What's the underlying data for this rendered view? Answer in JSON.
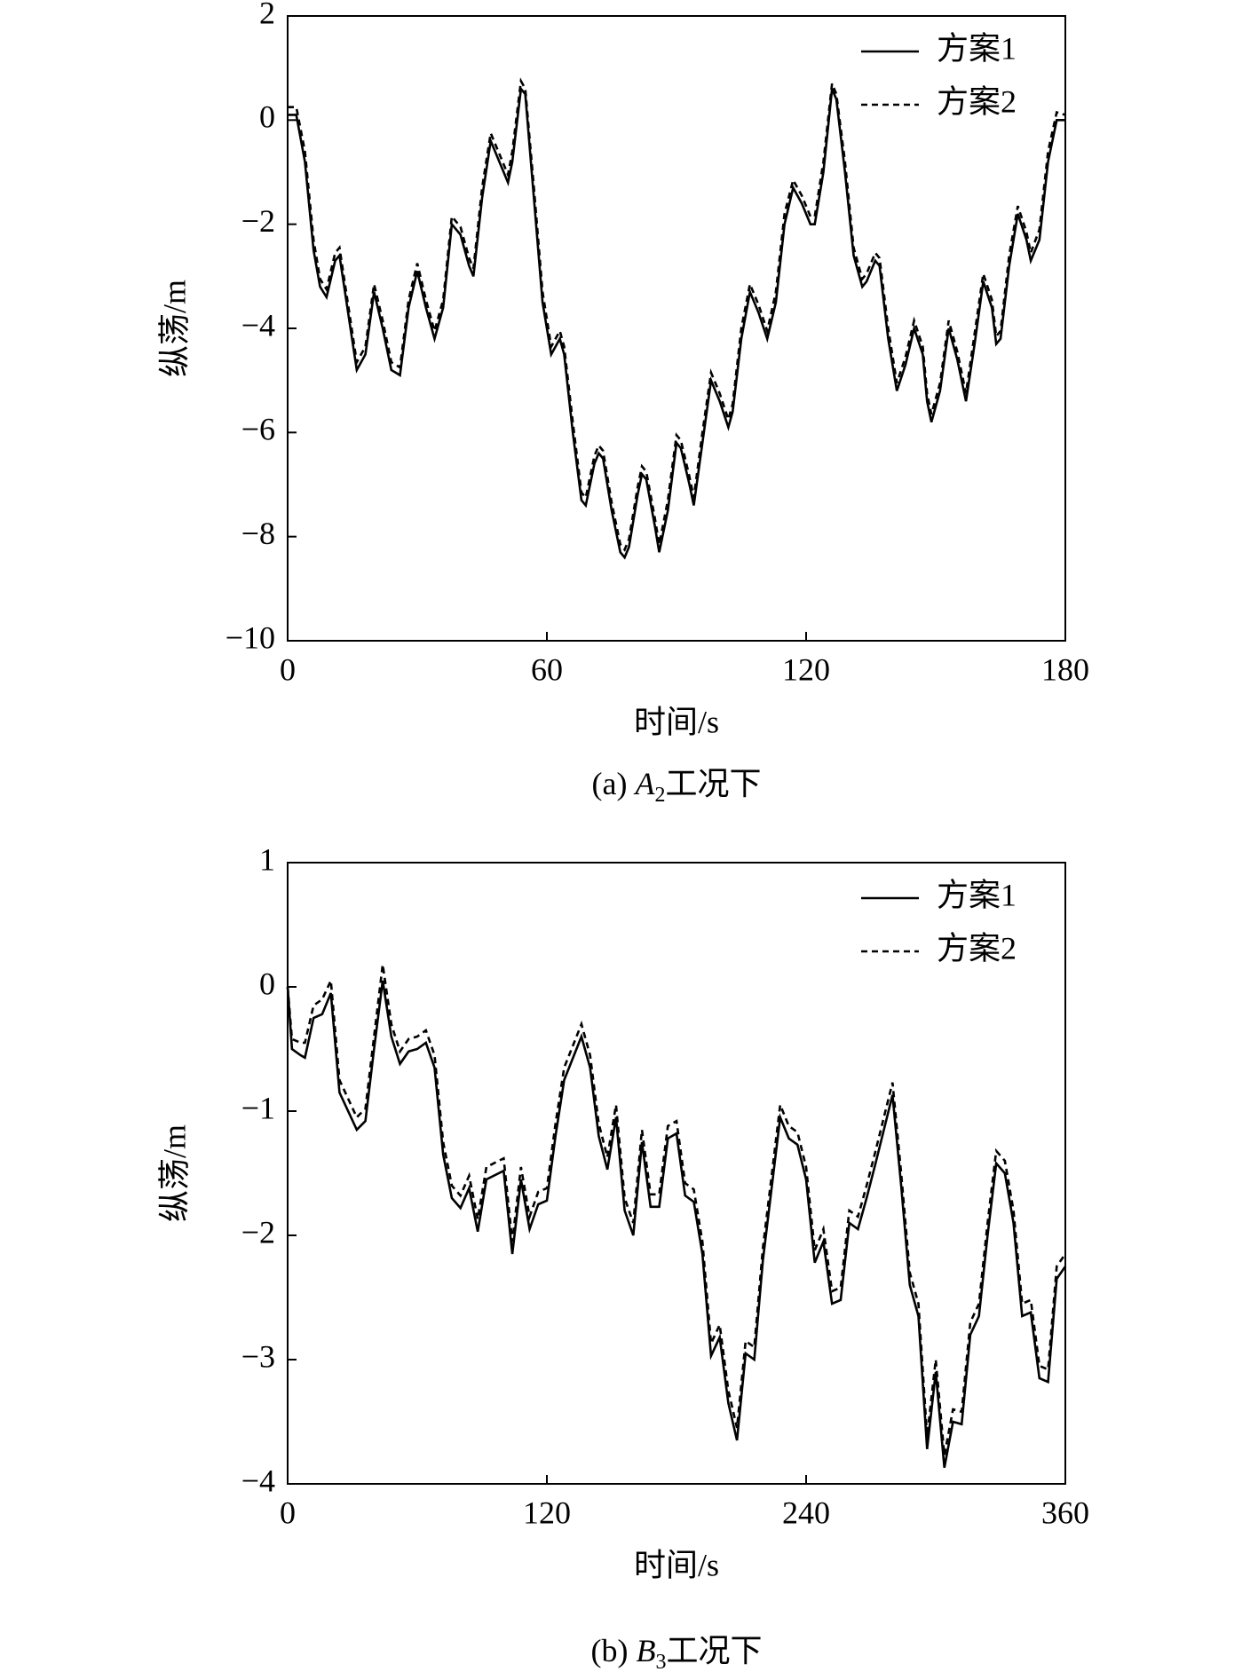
{
  "chart_data": [
    {
      "type": "line",
      "caption": {
        "prefix": "(a) ",
        "var": "A",
        "sub": "2",
        "rest": "工况下"
      },
      "xlabel": "时间/s",
      "ylabel": "纵荡/m",
      "xlim": [
        0,
        180
      ],
      "ylim": [
        -10,
        2
      ],
      "xticks": [
        0,
        60,
        120,
        180
      ],
      "yticks": [
        {
          "value": -10,
          "label": "−10"
        },
        {
          "value": -8,
          "label": "−8"
        },
        {
          "value": -6,
          "label": "−6"
        },
        {
          "value": -4,
          "label": "−4"
        },
        {
          "value": -2,
          "label": "−2"
        },
        0,
        2
      ],
      "legend": "upper right",
      "x": [
        0,
        2,
        4,
        6,
        7.5,
        9,
        11,
        12,
        14,
        16,
        18,
        20,
        22,
        24,
        26,
        28,
        30,
        32,
        34,
        36,
        38,
        40,
        42,
        43,
        45,
        47,
        49,
        51,
        52,
        54,
        55,
        57,
        59,
        61,
        63,
        64,
        66,
        68,
        69,
        71,
        72,
        73,
        75,
        77,
        78,
        79,
        81,
        82,
        83,
        85,
        86,
        88,
        90,
        91,
        93,
        94,
        96,
        98,
        100,
        102,
        103,
        105,
        107,
        109,
        111,
        113,
        115,
        117,
        119,
        121,
        122,
        124,
        126,
        127,
        129,
        131,
        133,
        134,
        136,
        137,
        139,
        141,
        143,
        145,
        147,
        148,
        149,
        151,
        153,
        155,
        157,
        159,
        161,
        163,
        164,
        165,
        167,
        169,
        171,
        172,
        174,
        176,
        178,
        180
      ],
      "series": [
        {
          "name": "方案1",
          "color": "#000000",
          "style": "solid",
          "values": [
            0.1,
            0.1,
            -0.8,
            -2.5,
            -3.2,
            -3.4,
            -2.7,
            -2.6,
            -3.7,
            -4.8,
            -4.5,
            -3.3,
            -4.0,
            -4.8,
            -4.9,
            -3.6,
            -2.9,
            -3.6,
            -4.2,
            -3.6,
            -2.0,
            -2.2,
            -2.8,
            -3.0,
            -1.5,
            -0.4,
            -0.8,
            -1.2,
            -0.8,
            0.6,
            0.5,
            -1.5,
            -3.5,
            -4.5,
            -4.2,
            -4.5,
            -6.0,
            -7.3,
            -7.4,
            -6.6,
            -6.4,
            -6.5,
            -7.5,
            -8.3,
            -8.4,
            -8.2,
            -7.2,
            -6.8,
            -6.9,
            -7.8,
            -8.3,
            -7.5,
            -6.2,
            -6.3,
            -7.0,
            -7.4,
            -6.2,
            -5.0,
            -5.4,
            -5.9,
            -5.6,
            -4.2,
            -3.3,
            -3.7,
            -4.2,
            -3.5,
            -2.0,
            -1.3,
            -1.6,
            -2.0,
            -2.0,
            -1.0,
            0.6,
            0.4,
            -1.0,
            -2.6,
            -3.2,
            -3.1,
            -2.7,
            -2.8,
            -4.2,
            -5.2,
            -4.7,
            -4.0,
            -4.5,
            -5.4,
            -5.8,
            -5.2,
            -4.0,
            -4.6,
            -5.4,
            -4.3,
            -3.1,
            -3.6,
            -4.3,
            -4.2,
            -2.8,
            -1.8,
            -2.3,
            -2.7,
            -2.3,
            -0.8,
            0.0,
            0.0
          ]
        },
        {
          "name": "方案2",
          "color": "#000000",
          "style": "dashed",
          "values": [
            0.25,
            0.25,
            -0.6,
            -2.3,
            -3.05,
            -3.25,
            -2.55,
            -2.45,
            -3.55,
            -4.65,
            -4.35,
            -3.15,
            -3.85,
            -4.65,
            -4.75,
            -3.45,
            -2.75,
            -3.45,
            -4.05,
            -3.45,
            -1.85,
            -2.05,
            -2.65,
            -2.85,
            -1.3,
            -0.25,
            -0.65,
            -1.05,
            -0.6,
            0.75,
            0.6,
            -1.3,
            -3.3,
            -4.35,
            -4.05,
            -4.35,
            -5.8,
            -7.15,
            -7.25,
            -6.45,
            -6.25,
            -6.35,
            -7.35,
            -8.15,
            -8.25,
            -8.05,
            -7.05,
            -6.65,
            -6.75,
            -7.65,
            -8.15,
            -7.3,
            -6.05,
            -6.15,
            -6.85,
            -7.25,
            -6.0,
            -4.85,
            -5.25,
            -5.75,
            -5.45,
            -4.0,
            -3.15,
            -3.55,
            -4.05,
            -3.3,
            -1.8,
            -1.15,
            -1.45,
            -1.85,
            -1.85,
            -0.8,
            0.7,
            0.5,
            -0.8,
            -2.45,
            -3.05,
            -2.95,
            -2.55,
            -2.65,
            -4.0,
            -5.05,
            -4.55,
            -3.85,
            -4.35,
            -5.25,
            -5.65,
            -5.05,
            -3.85,
            -4.45,
            -5.25,
            -4.1,
            -2.95,
            -3.45,
            -4.15,
            -4.05,
            -2.6,
            -1.65,
            -2.15,
            -2.55,
            -2.1,
            -0.6,
            0.15,
            0.1
          ]
        }
      ]
    },
    {
      "type": "line",
      "caption": {
        "prefix": "(b) ",
        "var": "B",
        "sub": "3",
        "rest": "工况下"
      },
      "xlabel": "时间/s",
      "ylabel": "纵荡/m",
      "xlim": [
        0,
        360
      ],
      "ylim": [
        -4,
        1
      ],
      "xticks": [
        0,
        120,
        240,
        360
      ],
      "yticks": [
        {
          "value": -4,
          "label": "−4"
        },
        {
          "value": -3,
          "label": "−3"
        },
        {
          "value": -2,
          "label": "−2"
        },
        {
          "value": -1,
          "label": "−1"
        },
        0,
        1
      ],
      "legend": "upper right",
      "x": [
        0,
        2,
        6,
        8,
        12,
        16,
        20,
        24,
        28,
        32,
        36,
        40,
        44,
        48,
        52,
        56,
        60,
        64,
        68,
        72,
        76,
        80,
        84,
        88,
        92,
        100,
        104,
        108,
        112,
        116,
        120,
        124,
        128,
        136,
        140,
        144,
        148,
        152,
        156,
        160,
        164,
        168,
        172,
        176,
        180,
        184,
        188,
        192,
        196,
        200,
        204,
        208,
        212,
        216,
        220,
        228,
        232,
        236,
        240,
        244,
        248,
        252,
        256,
        260,
        264,
        268,
        272,
        280,
        284,
        288,
        292,
        296,
        300,
        304,
        308,
        312,
        316,
        320,
        324,
        328,
        332,
        336,
        340,
        344,
        348,
        352,
        356,
        360
      ],
      "series": [
        {
          "name": "方案1",
          "color": "#000000",
          "style": "solid",
          "values": [
            0.0,
            -0.5,
            -0.55,
            -0.57,
            -0.25,
            -0.22,
            -0.05,
            -0.85,
            -1.0,
            -1.15,
            -1.08,
            -0.5,
            0.05,
            -0.4,
            -0.62,
            -0.52,
            -0.5,
            -0.45,
            -0.65,
            -1.35,
            -1.7,
            -1.78,
            -1.62,
            -1.97,
            -1.55,
            -1.48,
            -2.15,
            -1.55,
            -1.95,
            -1.75,
            -1.72,
            -1.2,
            -0.75,
            -0.4,
            -0.65,
            -1.2,
            -1.47,
            -1.05,
            -1.8,
            -2.0,
            -1.25,
            -1.77,
            -1.77,
            -1.22,
            -1.18,
            -1.68,
            -1.73,
            -2.15,
            -2.97,
            -2.82,
            -3.35,
            -3.65,
            -2.95,
            -3.0,
            -2.2,
            -1.05,
            -1.22,
            -1.27,
            -1.55,
            -2.22,
            -2.05,
            -2.55,
            -2.52,
            -1.9,
            -1.95,
            -1.7,
            -1.43,
            -0.87,
            -1.6,
            -2.4,
            -2.65,
            -3.72,
            -3.1,
            -3.87,
            -3.5,
            -3.52,
            -2.8,
            -2.65,
            -2.0,
            -1.42,
            -1.5,
            -1.9,
            -2.65,
            -2.62,
            -3.15,
            -3.18,
            -2.35,
            -2.25
          ]
        },
        {
          "name": "方案2",
          "color": "#000000",
          "style": "dashed",
          "values": [
            0.0,
            -0.42,
            -0.45,
            -0.45,
            -0.15,
            -0.1,
            0.05,
            -0.75,
            -0.9,
            -1.05,
            -0.98,
            -0.4,
            0.18,
            -0.3,
            -0.52,
            -0.42,
            -0.4,
            -0.35,
            -0.55,
            -1.25,
            -1.6,
            -1.68,
            -1.52,
            -1.87,
            -1.45,
            -1.38,
            -2.05,
            -1.45,
            -1.85,
            -1.65,
            -1.62,
            -1.1,
            -0.65,
            -0.3,
            -0.55,
            -1.1,
            -1.37,
            -0.95,
            -1.7,
            -1.9,
            -1.15,
            -1.67,
            -1.67,
            -1.12,
            -1.08,
            -1.58,
            -1.63,
            -2.05,
            -2.87,
            -2.72,
            -3.25,
            -3.55,
            -2.85,
            -2.9,
            -2.1,
            -0.95,
            -1.12,
            -1.17,
            -1.45,
            -2.12,
            -1.95,
            -2.45,
            -2.42,
            -1.8,
            -1.85,
            -1.6,
            -1.33,
            -0.77,
            -1.5,
            -2.3,
            -2.55,
            -3.62,
            -3.0,
            -3.77,
            -3.4,
            -3.42,
            -2.7,
            -2.55,
            -1.9,
            -1.32,
            -1.4,
            -1.8,
            -2.55,
            -2.52,
            -3.05,
            -3.08,
            -2.25,
            -2.15
          ]
        }
      ]
    }
  ]
}
